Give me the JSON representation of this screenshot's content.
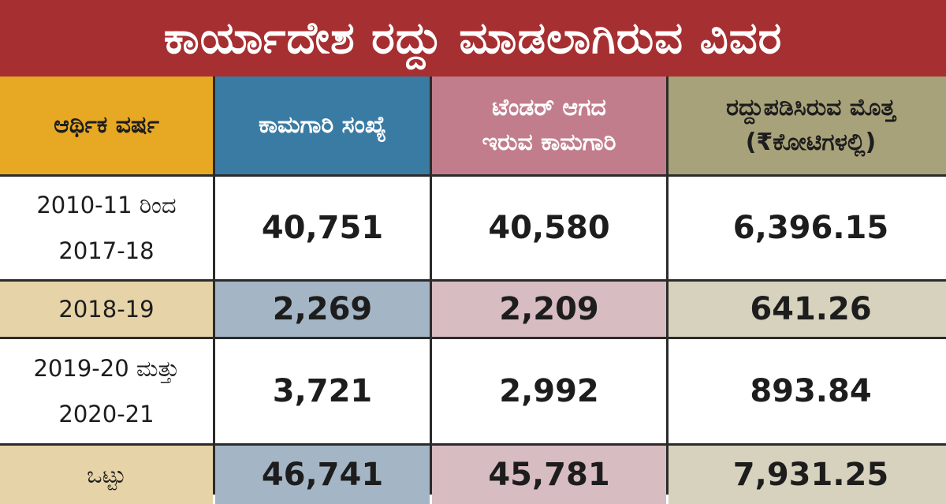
{
  "title": "ಕಾರ್ಯಾದೇಶ ರದ್ದು ಮಾಡಲಾಗಿರುವ ವಿವರ",
  "colors": {
    "title_bg": "#a62f31",
    "col1_header": "#e7a923",
    "col2_header": "#3a7ba3",
    "col3_header": "#c27d8c",
    "col4_header": "#a8a27a"
  },
  "chart_data": {
    "type": "table",
    "title": "ಕಾರ್ಯಾದೇಶ ರದ್ದು ಮಾಡಲಾಗಿರುವ ವಿವರ",
    "headers": [
      "ಆರ್ಥಿಕ ವರ್ಷ",
      "ಕಾಮಗಾರಿ ಸಂಖ್ಯೆ",
      "ಟೆಂಡರ್ ಆಗದ\nಇರುವ ಕಾಮಗಾರಿ",
      "ರದ್ದುಪಡಿಸಿರುವ ಮೊತ್ತ\n(₹ಕೋಟಿಗಳಲ್ಲಿ)"
    ],
    "rows": [
      {
        "year": "2010-11 ರಿಂದ\n2017-18",
        "works": "40,751",
        "not_tendered": "40,580",
        "amount": "6,396.15"
      },
      {
        "year": "2018-19",
        "works": "2,269",
        "not_tendered": "2,209",
        "amount": "641.26"
      },
      {
        "year": "2019-20 ಮತ್ತು\n2020-21",
        "works": "3,721",
        "not_tendered": "2,992",
        "amount": "893.84"
      },
      {
        "year": "ಒಟ್ಟು",
        "works": "46,741",
        "not_tendered": "45,781",
        "amount": "7,931.25"
      }
    ]
  }
}
